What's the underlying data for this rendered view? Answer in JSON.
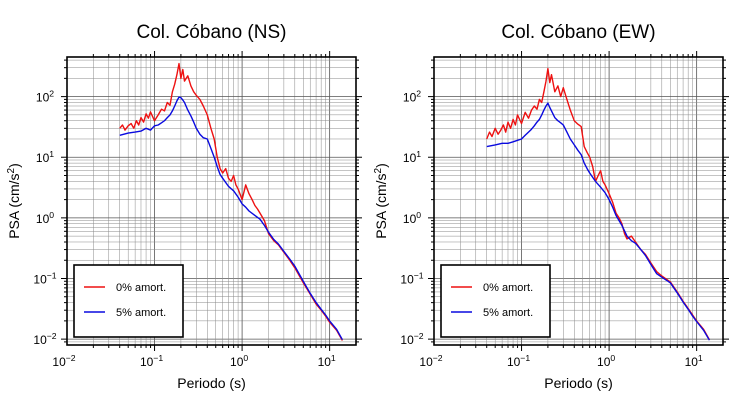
{
  "chart_data": [
    {
      "type": "line",
      "title": "Col. Cóbano (NS)",
      "xlabel": "Periodo (s)",
      "ylabel_main": "PSA (cm/s",
      "ylabel_sup": "2",
      "ylabel_end": ")",
      "xscale": "log",
      "yscale": "log",
      "xlim": [
        0.01,
        20
      ],
      "ylim": [
        0.008,
        450
      ],
      "grid": true,
      "legend_position": "bottom-left",
      "x_tick_labels": [
        {
          "value": 0.01,
          "base": "10",
          "exp": "−2"
        },
        {
          "value": 0.1,
          "base": "10",
          "exp": "−1"
        },
        {
          "value": 1,
          "base": "10",
          "exp": "0"
        },
        {
          "value": 10,
          "base": "10",
          "exp": "1"
        }
      ],
      "y_tick_labels": [
        {
          "value": 0.01,
          "base": "10",
          "exp": "−2"
        },
        {
          "value": 0.1,
          "base": "10",
          "exp": "−1"
        },
        {
          "value": 1,
          "base": "10",
          "exp": "0"
        },
        {
          "value": 10,
          "base": "10",
          "exp": "1"
        },
        {
          "value": 100,
          "base": "10",
          "exp": "2"
        }
      ],
      "series": [
        {
          "name": "0% amort.",
          "color": "#ee1111",
          "points": [
            [
              0.04,
              30
            ],
            [
              0.043,
              34
            ],
            [
              0.046,
              28
            ],
            [
              0.05,
              33
            ],
            [
              0.054,
              36
            ],
            [
              0.058,
              30
            ],
            [
              0.062,
              40
            ],
            [
              0.066,
              34
            ],
            [
              0.07,
              45
            ],
            [
              0.075,
              38
            ],
            [
              0.08,
              52
            ],
            [
              0.085,
              44
            ],
            [
              0.09,
              56
            ],
            [
              0.1,
              40
            ],
            [
              0.11,
              50
            ],
            [
              0.12,
              62
            ],
            [
              0.13,
              58
            ],
            [
              0.14,
              80
            ],
            [
              0.15,
              72
            ],
            [
              0.16,
              120
            ],
            [
              0.17,
              160
            ],
            [
              0.18,
              230
            ],
            [
              0.19,
              350
            ],
            [
              0.2,
              200
            ],
            [
              0.21,
              280
            ],
            [
              0.22,
              180
            ],
            [
              0.24,
              220
            ],
            [
              0.26,
              150
            ],
            [
              0.28,
              120
            ],
            [
              0.3,
              105
            ],
            [
              0.33,
              90
            ],
            [
              0.36,
              70
            ],
            [
              0.4,
              50
            ],
            [
              0.44,
              30
            ],
            [
              0.48,
              20
            ],
            [
              0.52,
              10
            ],
            [
              0.56,
              6.5
            ],
            [
              0.6,
              5.5
            ],
            [
              0.65,
              6.5
            ],
            [
              0.7,
              4.5
            ],
            [
              0.75,
              4
            ],
            [
              0.8,
              5
            ],
            [
              0.85,
              3.5
            ],
            [
              0.9,
              3
            ],
            [
              1,
              2
            ],
            [
              1.1,
              3.5
            ],
            [
              1.2,
              2.5
            ],
            [
              1.3,
              2
            ],
            [
              1.4,
              1.6
            ],
            [
              1.5,
              1.4
            ],
            [
              1.6,
              1.2
            ],
            [
              1.8,
              0.9
            ],
            [
              2,
              0.55
            ],
            [
              2.3,
              0.42
            ],
            [
              2.6,
              0.36
            ],
            [
              3,
              0.27
            ],
            [
              3.5,
              0.2
            ],
            [
              4,
              0.15
            ],
            [
              5,
              0.085
            ],
            [
              6,
              0.055
            ],
            [
              7,
              0.038
            ],
            [
              8,
              0.03
            ],
            [
              9,
              0.024
            ],
            [
              10,
              0.019
            ],
            [
              12,
              0.014
            ],
            [
              14,
              0.0095
            ]
          ]
        },
        {
          "name": "5% amort.",
          "color": "#0a0adf",
          "points": [
            [
              0.04,
              23
            ],
            [
              0.05,
              25
            ],
            [
              0.06,
              26
            ],
            [
              0.07,
              27
            ],
            [
              0.08,
              30
            ],
            [
              0.09,
              28
            ],
            [
              0.1,
              33
            ],
            [
              0.11,
              34
            ],
            [
              0.12,
              37
            ],
            [
              0.13,
              40
            ],
            [
              0.14,
              45
            ],
            [
              0.15,
              50
            ],
            [
              0.16,
              58
            ],
            [
              0.17,
              70
            ],
            [
              0.18,
              85
            ],
            [
              0.19,
              98
            ],
            [
              0.2,
              96
            ],
            [
              0.21,
              88
            ],
            [
              0.22,
              80
            ],
            [
              0.24,
              60
            ],
            [
              0.26,
              48
            ],
            [
              0.28,
              38
            ],
            [
              0.3,
              30
            ],
            [
              0.33,
              24
            ],
            [
              0.36,
              21
            ],
            [
              0.4,
              20
            ],
            [
              0.44,
              14
            ],
            [
              0.48,
              10
            ],
            [
              0.52,
              7
            ],
            [
              0.56,
              5.2
            ],
            [
              0.6,
              4.5
            ],
            [
              0.7,
              3.3
            ],
            [
              0.8,
              2.8
            ],
            [
              0.9,
              2.2
            ],
            [
              1,
              1.7
            ],
            [
              1.1,
              1.5
            ],
            [
              1.2,
              1.3
            ],
            [
              1.4,
              1.1
            ],
            [
              1.6,
              0.95
            ],
            [
              1.8,
              0.75
            ],
            [
              2,
              0.58
            ],
            [
              2.3,
              0.44
            ],
            [
              2.6,
              0.37
            ],
            [
              3,
              0.28
            ],
            [
              3.5,
              0.21
            ],
            [
              4,
              0.16
            ],
            [
              5,
              0.09
            ],
            [
              6,
              0.057
            ],
            [
              7,
              0.04
            ],
            [
              8,
              0.031
            ],
            [
              9,
              0.025
            ],
            [
              10,
              0.02
            ],
            [
              12,
              0.0145
            ],
            [
              14,
              0.0098
            ]
          ]
        }
      ]
    },
    {
      "type": "line",
      "title": "Col. Cóbano (EW)",
      "xlabel": "Periodo (s)",
      "ylabel_main": "PSA (cm/s",
      "ylabel_sup": "2",
      "ylabel_end": ")",
      "xscale": "log",
      "yscale": "log",
      "xlim": [
        0.01,
        20
      ],
      "ylim": [
        0.008,
        450
      ],
      "grid": true,
      "legend_position": "bottom-left",
      "x_tick_labels": [
        {
          "value": 0.01,
          "base": "10",
          "exp": "−2"
        },
        {
          "value": 0.1,
          "base": "10",
          "exp": "−1"
        },
        {
          "value": 1,
          "base": "10",
          "exp": "0"
        },
        {
          "value": 10,
          "base": "10",
          "exp": "1"
        }
      ],
      "y_tick_labels": [
        {
          "value": 0.01,
          "base": "10",
          "exp": "−2"
        },
        {
          "value": 0.1,
          "base": "10",
          "exp": "−1"
        },
        {
          "value": 1,
          "base": "10",
          "exp": "0"
        },
        {
          "value": 10,
          "base": "10",
          "exp": "1"
        },
        {
          "value": 100,
          "base": "10",
          "exp": "2"
        }
      ],
      "series": [
        {
          "name": "0% amort.",
          "color": "#ee1111",
          "points": [
            [
              0.04,
              20
            ],
            [
              0.043,
              26
            ],
            [
              0.046,
              22
            ],
            [
              0.05,
              30
            ],
            [
              0.054,
              24
            ],
            [
              0.058,
              28
            ],
            [
              0.062,
              34
            ],
            [
              0.066,
              26
            ],
            [
              0.07,
              38
            ],
            [
              0.075,
              30
            ],
            [
              0.08,
              42
            ],
            [
              0.085,
              34
            ],
            [
              0.09,
              50
            ],
            [
              0.1,
              36
            ],
            [
              0.11,
              55
            ],
            [
              0.12,
              44
            ],
            [
              0.13,
              60
            ],
            [
              0.14,
              70
            ],
            [
              0.15,
              62
            ],
            [
              0.16,
              90
            ],
            [
              0.17,
              80
            ],
            [
              0.18,
              120
            ],
            [
              0.19,
              180
            ],
            [
              0.2,
              290
            ],
            [
              0.21,
              170
            ],
            [
              0.22,
              230
            ],
            [
              0.24,
              120
            ],
            [
              0.26,
              150
            ],
            [
              0.28,
              100
            ],
            [
              0.3,
              140
            ],
            [
              0.33,
              90
            ],
            [
              0.36,
              60
            ],
            [
              0.4,
              40
            ],
            [
              0.44,
              35
            ],
            [
              0.48,
              32
            ],
            [
              0.52,
              15
            ],
            [
              0.56,
              12
            ],
            [
              0.6,
              10
            ],
            [
              0.65,
              7
            ],
            [
              0.7,
              4
            ],
            [
              0.75,
              5
            ],
            [
              0.8,
              6
            ],
            [
              0.85,
              4
            ],
            [
              0.9,
              3.5
            ],
            [
              1,
              2.5
            ],
            [
              1.1,
              1.8
            ],
            [
              1.2,
              1.2
            ],
            [
              1.3,
              1.0
            ],
            [
              1.4,
              0.8
            ],
            [
              1.5,
              0.55
            ],
            [
              1.6,
              0.45
            ],
            [
              1.8,
              0.5
            ],
            [
              2,
              0.4
            ],
            [
              2.3,
              0.3
            ],
            [
              2.6,
              0.25
            ],
            [
              3,
              0.18
            ],
            [
              3.5,
              0.13
            ],
            [
              4,
              0.11
            ],
            [
              5,
              0.088
            ],
            [
              6,
              0.06
            ],
            [
              7,
              0.042
            ],
            [
              8,
              0.032
            ],
            [
              9,
              0.025
            ],
            [
              10,
              0.02
            ],
            [
              12,
              0.0145
            ],
            [
              14,
              0.0098
            ]
          ]
        },
        {
          "name": "5% amort.",
          "color": "#0a0adf",
          "points": [
            [
              0.04,
              15
            ],
            [
              0.05,
              16
            ],
            [
              0.06,
              17
            ],
            [
              0.07,
              17
            ],
            [
              0.08,
              18
            ],
            [
              0.09,
              19
            ],
            [
              0.1,
              20
            ],
            [
              0.11,
              23
            ],
            [
              0.12,
              26
            ],
            [
              0.13,
              29
            ],
            [
              0.14,
              33
            ],
            [
              0.15,
              38
            ],
            [
              0.16,
              42
            ],
            [
              0.17,
              50
            ],
            [
              0.18,
              60
            ],
            [
              0.19,
              70
            ],
            [
              0.2,
              78
            ],
            [
              0.21,
              66
            ],
            [
              0.22,
              58
            ],
            [
              0.24,
              45
            ],
            [
              0.26,
              40
            ],
            [
              0.28,
              37
            ],
            [
              0.3,
              34
            ],
            [
              0.33,
              26
            ],
            [
              0.36,
              20
            ],
            [
              0.4,
              16
            ],
            [
              0.44,
              13
            ],
            [
              0.48,
              11
            ],
            [
              0.52,
              8
            ],
            [
              0.56,
              6.5
            ],
            [
              0.6,
              5.5
            ],
            [
              0.7,
              4
            ],
            [
              0.8,
              3.2
            ],
            [
              0.9,
              2.6
            ],
            [
              1,
              2.0
            ],
            [
              1.1,
              1.5
            ],
            [
              1.2,
              1.1
            ],
            [
              1.4,
              0.75
            ],
            [
              1.6,
              0.5
            ],
            [
              1.8,
              0.42
            ],
            [
              2,
              0.38
            ],
            [
              2.3,
              0.3
            ],
            [
              2.6,
              0.24
            ],
            [
              3,
              0.17
            ],
            [
              3.5,
              0.12
            ],
            [
              4,
              0.105
            ],
            [
              5,
              0.085
            ],
            [
              6,
              0.058
            ],
            [
              7,
              0.041
            ],
            [
              8,
              0.031
            ],
            [
              9,
              0.024
            ],
            [
              10,
              0.0195
            ],
            [
              12,
              0.014
            ],
            [
              14,
              0.0096
            ]
          ]
        }
      ]
    }
  ]
}
